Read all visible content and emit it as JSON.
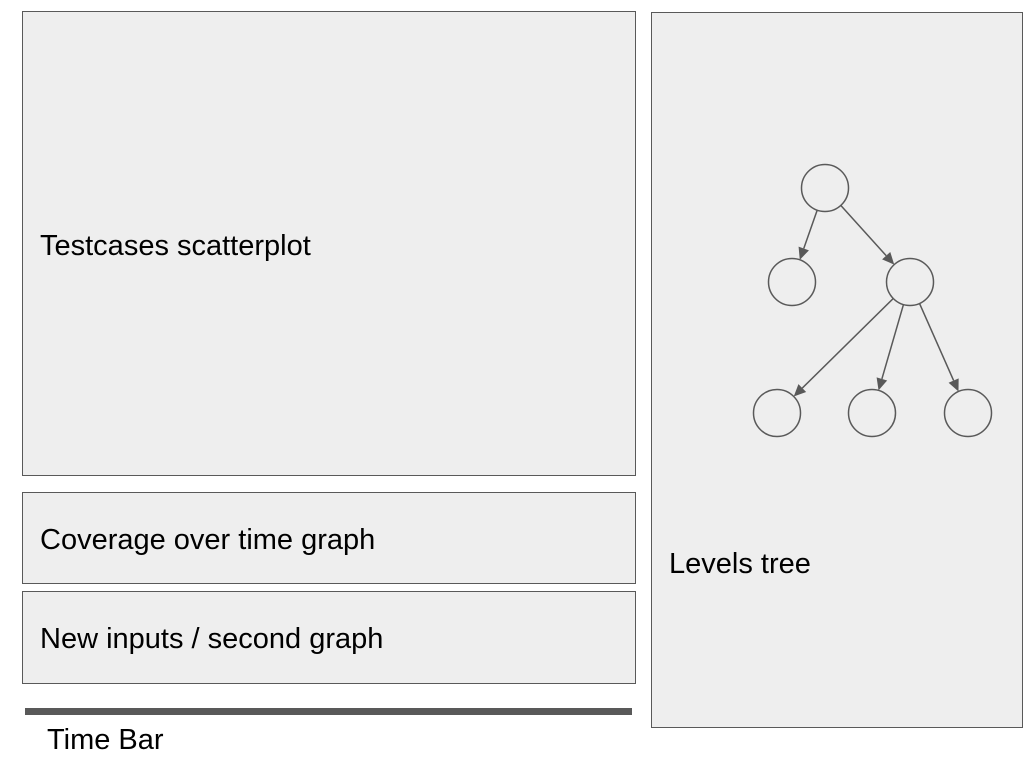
{
  "panels": {
    "scatter_label": "Testcases scatterplot",
    "coverage_label": "Coverage over time graph",
    "inputs_label": "New inputs / second graph",
    "levels_label": "Levels tree"
  },
  "time_bar": {
    "label": "Time Bar"
  },
  "tree": {
    "nodes": [
      "root",
      "child-left",
      "child-right",
      "grandchild-1",
      "grandchild-2",
      "grandchild-3"
    ],
    "edges": [
      [
        "root",
        "child-left"
      ],
      [
        "root",
        "child-right"
      ],
      [
        "child-right",
        "grandchild-1"
      ],
      [
        "child-right",
        "grandchild-2"
      ],
      [
        "child-right",
        "grandchild-3"
      ]
    ]
  },
  "colors": {
    "panel_fill": "#eeeeee",
    "stroke": "#595959",
    "text": "#000000"
  }
}
